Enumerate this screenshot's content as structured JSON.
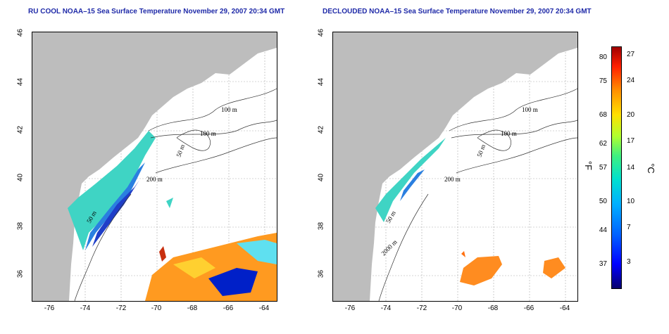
{
  "left_map": {
    "title": "RU COOL NOAA–15 Sea Surface Temperature November 29, 2007 20:34 GMT",
    "contour_labels": [
      "100 m",
      "100 m",
      "50 m",
      "200 m",
      "50 m"
    ]
  },
  "right_map": {
    "title": "DECLOUDED NOAA–15 Sea Surface Temperature November 29, 2007 20:34 GMT",
    "contour_labels": [
      "100 m",
      "100 m",
      "50 m",
      "200 m",
      "50 m",
      "2000 m"
    ]
  },
  "axes": {
    "y_ticks": [
      "46",
      "44",
      "42",
      "40",
      "38",
      "36"
    ],
    "x_ticks": [
      "-76",
      "-74",
      "-72",
      "-70",
      "-68",
      "-66",
      "-64"
    ]
  },
  "colorbar": {
    "fahrenheit_ticks": [
      "80",
      "75",
      "68",
      "62",
      "57",
      "50",
      "44",
      "37"
    ],
    "celsius_ticks": [
      "27",
      "24",
      "20",
      "17",
      "14",
      "10",
      "7",
      "3"
    ],
    "f_unit": "°F",
    "c_unit": "°C"
  },
  "colors": {
    "land": "#bdbdbd",
    "title": "#1f2aa8"
  }
}
